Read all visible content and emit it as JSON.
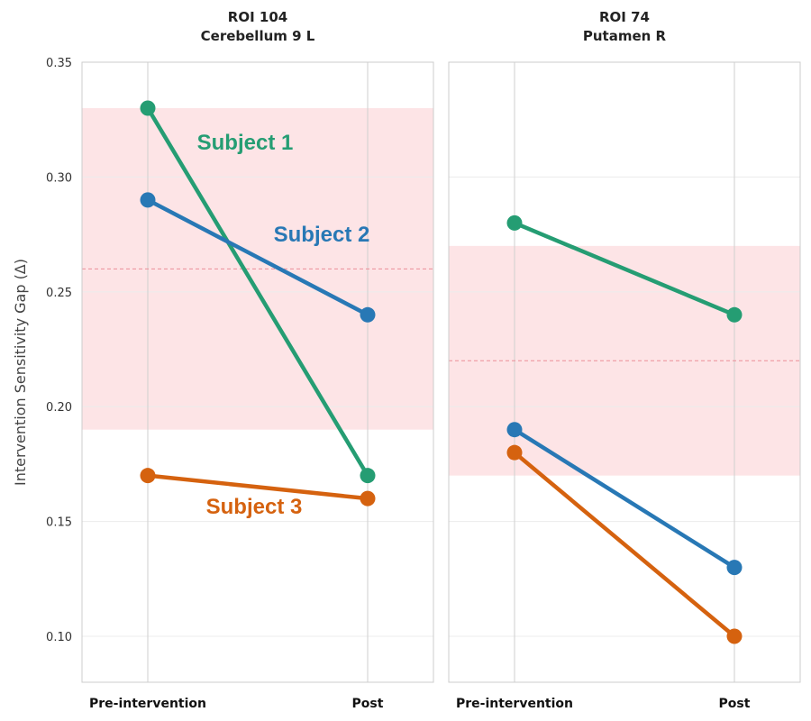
{
  "chart_data": {
    "type": "line",
    "ylabel": "Intervention Sensitivity Gap (Δ)",
    "ylim": [
      0.08,
      0.35
    ],
    "yticks": [
      "0.10",
      "0.15",
      "0.20",
      "0.25",
      "0.30",
      "0.35"
    ],
    "categories": [
      "Pre-intervention",
      "Post"
    ],
    "grid": true,
    "panels": [
      {
        "title": [
          "ROI 104",
          "Cerebellum 9 L"
        ],
        "band": {
          "low": 0.19,
          "high": 0.33,
          "mean": 0.26
        },
        "series": [
          {
            "name": "Subject 1",
            "color": "#259d73",
            "values": [
              0.33,
              0.17
            ],
            "label_shown": true
          },
          {
            "name": "Subject 2",
            "color": "#2878b5",
            "values": [
              0.29,
              0.24
            ],
            "label_shown": true
          },
          {
            "name": "Subject 3",
            "color": "#d5620f",
            "values": [
              0.17,
              0.16
            ],
            "label_shown": true
          }
        ]
      },
      {
        "title": [
          "ROI 74",
          "Putamen R"
        ],
        "band": {
          "low": 0.17,
          "high": 0.27,
          "mean": 0.22
        },
        "series": [
          {
            "name": "Subject 1",
            "color": "#259d73",
            "values": [
              0.28,
              0.24
            ],
            "label_shown": false
          },
          {
            "name": "Subject 2",
            "color": "#2878b5",
            "values": [
              0.19,
              0.13
            ],
            "label_shown": false
          },
          {
            "name": "Subject 3",
            "color": "#d5620f",
            "values": [
              0.18,
              0.1
            ],
            "label_shown": false
          }
        ]
      }
    ]
  }
}
